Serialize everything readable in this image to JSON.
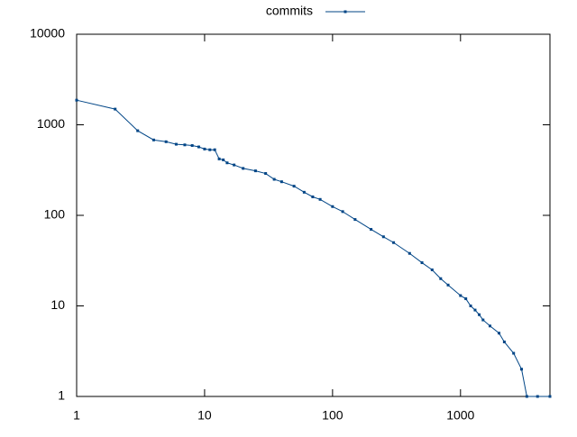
{
  "chart_data": {
    "type": "line",
    "x": [
      1,
      2,
      3,
      4,
      5,
      6,
      7,
      8,
      9,
      10,
      11,
      12,
      13,
      14,
      15,
      17,
      20,
      25,
      30,
      35,
      40,
      50,
      60,
      70,
      80,
      100,
      120,
      150,
      200,
      250,
      300,
      400,
      500,
      600,
      700,
      800,
      1000,
      1100,
      1200,
      1300,
      1400,
      1500,
      1700,
      2000,
      2200,
      2600,
      3000,
      3300,
      4000,
      5000
    ],
    "series": [
      {
        "name": "commits",
        "color": "#004586",
        "values": [
          1870,
          1490,
          860,
          680,
          650,
          610,
          600,
          590,
          570,
          540,
          530,
          530,
          420,
          410,
          380,
          360,
          330,
          310,
          290,
          250,
          235,
          210,
          180,
          160,
          150,
          125,
          110,
          90,
          70,
          58,
          50,
          38,
          30,
          25,
          20,
          17,
          13,
          12,
          10,
          9,
          8,
          7,
          6,
          5,
          4,
          3,
          2,
          1,
          1,
          1
        ]
      }
    ],
    "xlim": [
      1,
      5000
    ],
    "ylim": [
      1,
      10000
    ],
    "xticks": [
      1,
      10,
      100,
      1000
    ],
    "yticks": [
      1,
      10,
      100,
      1000,
      10000
    ],
    "xscale": "log",
    "yscale": "log",
    "grid": false,
    "legend": "top"
  }
}
